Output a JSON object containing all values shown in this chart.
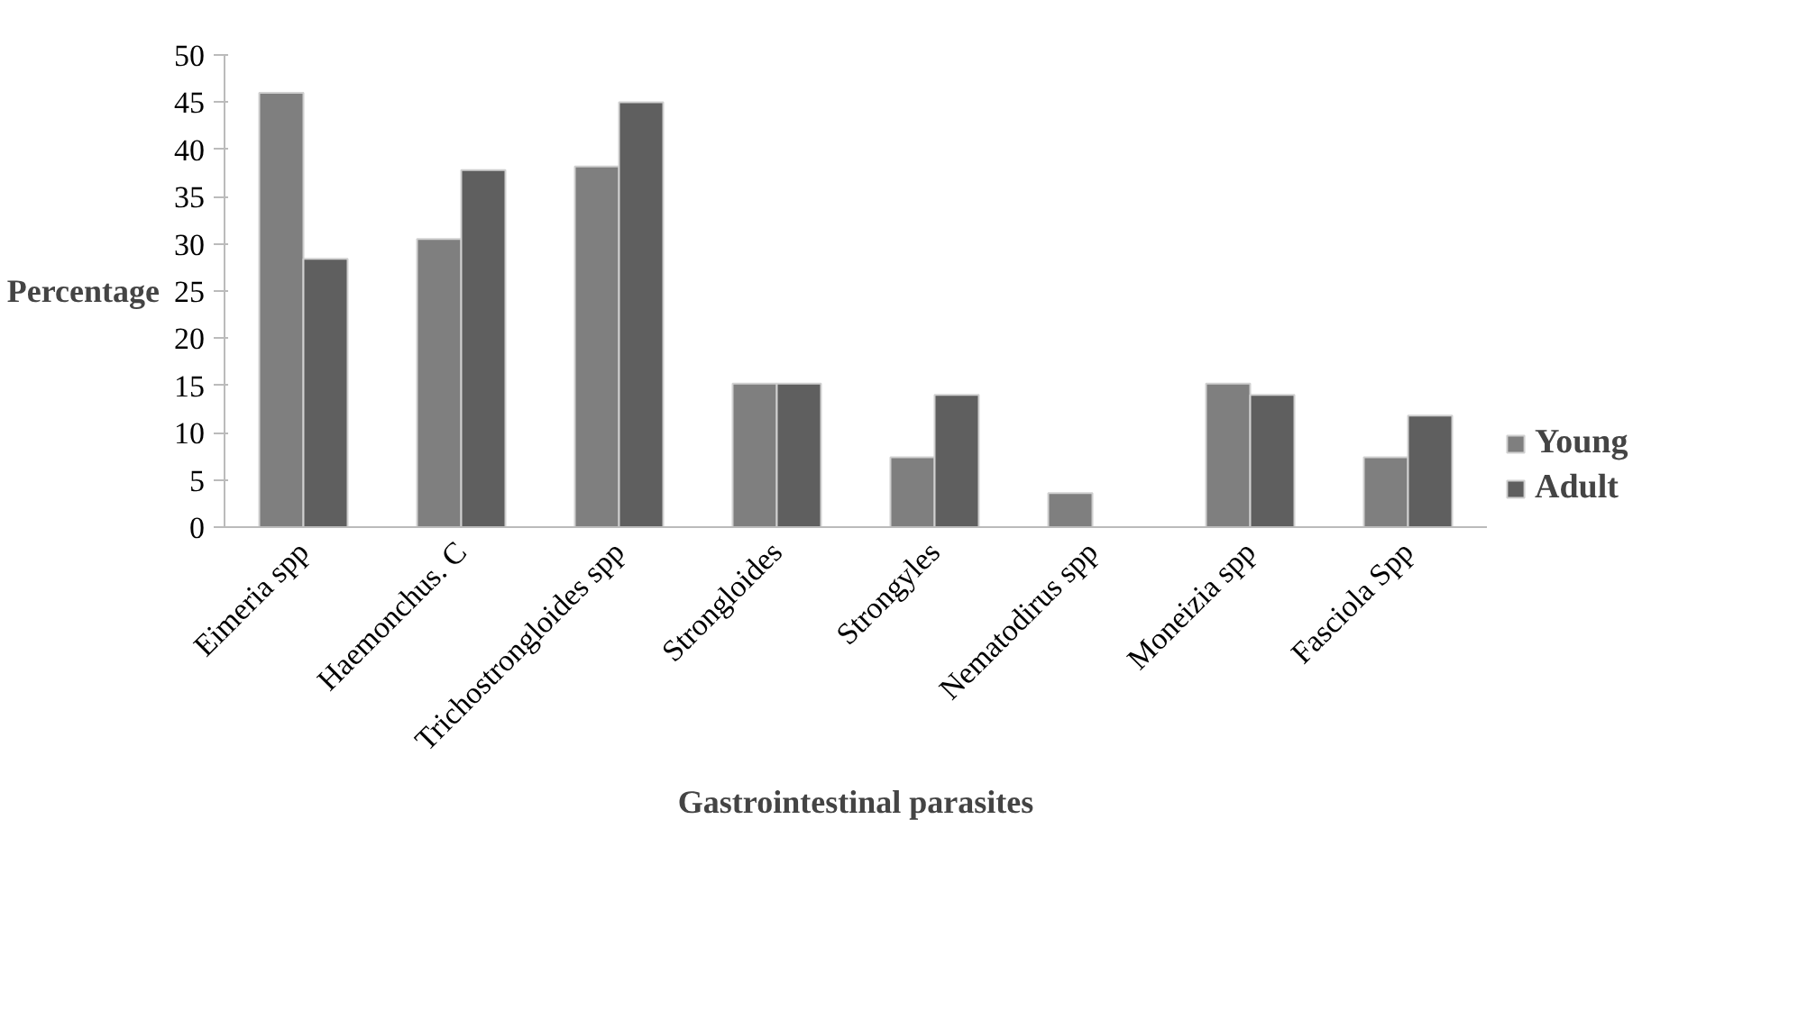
{
  "chart_data": {
    "type": "bar",
    "xlabel": "Gastrointestinal parasites",
    "ylabel": "Percentage",
    "categories": [
      "Eimeria spp",
      "Haemonchus. C",
      "Trichostrongloides spp",
      "Strongloides",
      "Strongyles",
      "Nematodirus spp",
      "Moneizia spp",
      "Fasciola Spp"
    ],
    "series": [
      {
        "name": "Young",
        "color": "#7f7f7f",
        "values": [
          46.0,
          30.5,
          38.2,
          15.2,
          7.4,
          3.6,
          15.2,
          7.4
        ]
      },
      {
        "name": "Adult",
        "color": "#5f5f5f",
        "values": [
          28.4,
          37.8,
          45.0,
          15.2,
          14.0,
          null,
          14.0,
          11.8
        ]
      }
    ],
    "ylim": [
      0,
      50
    ],
    "yticks": [
      0,
      5,
      10,
      15,
      20,
      25,
      30,
      35,
      40,
      45,
      50
    ],
    "grid": false,
    "legend": "right"
  }
}
